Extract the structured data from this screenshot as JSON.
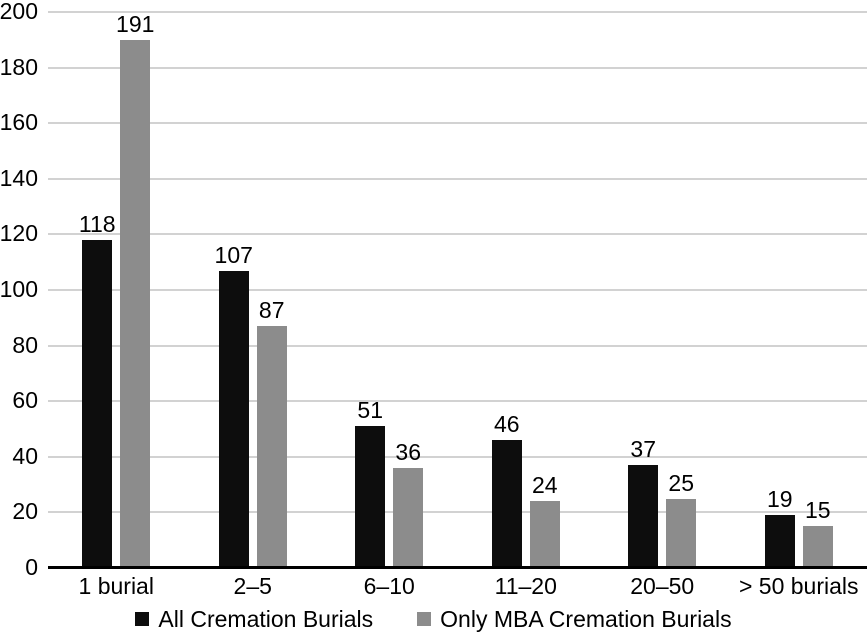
{
  "chart_data": {
    "type": "bar",
    "title": "",
    "xlabel": "",
    "ylabel": "",
    "categories": [
      "1 burial",
      "2–5",
      "6–10",
      "11–20",
      "20–50",
      "> 50 burials"
    ],
    "series": [
      {
        "name": "All Cremation Burials",
        "color": "#0d0d0d",
        "values": [
          118,
          107,
          51,
          46,
          37,
          19
        ]
      },
      {
        "name": "Only MBA Cremation Burials",
        "color": "#8c8c8c",
        "values": [
          191,
          87,
          36,
          24,
          25,
          15
        ]
      }
    ],
    "ylim": [
      0,
      200
    ],
    "ytick_step": 20,
    "ytick_labels": [
      "0",
      "20",
      "40",
      "60",
      "80",
      "100",
      "120",
      "140",
      "160",
      "180",
      "200"
    ],
    "grid": true,
    "legend_position": "bottom",
    "colors": {
      "grid": "#d2d2d2",
      "axis": "#000000",
      "text": "#000000",
      "background": "#ffffff"
    }
  }
}
